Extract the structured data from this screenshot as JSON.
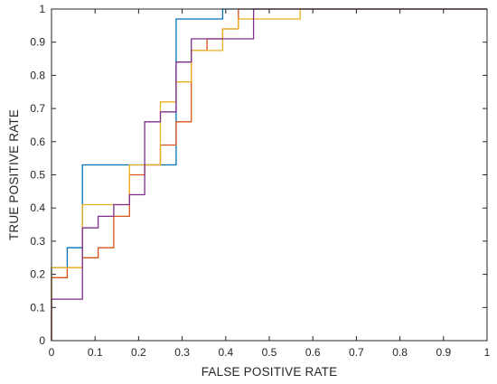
{
  "chart_data": {
    "type": "line",
    "title": "",
    "xlabel": "FALSE POSITIVE RATE",
    "ylabel": "TRUE POSITIVE RATE",
    "xlim": [
      0,
      1
    ],
    "ylim": [
      0,
      1
    ],
    "x_ticks": [
      0,
      0.1,
      0.2,
      0.3,
      0.4,
      0.5,
      0.6,
      0.7,
      0.8,
      0.9,
      1
    ],
    "y_ticks": [
      0,
      0.1,
      0.2,
      0.3,
      0.4,
      0.5,
      0.6,
      0.7,
      0.8,
      0.9,
      1
    ],
    "x_tick_labels": [
      "0",
      "0.1",
      "0.2",
      "0.3",
      "0.4",
      "0.5",
      "0.6",
      "0.7",
      "0.8",
      "0.9",
      "1"
    ],
    "y_tick_labels": [
      "0",
      "0.1",
      "0.2",
      "0.3",
      "0.4",
      "0.5",
      "0.6",
      "0.7",
      "0.8",
      "0.9",
      "1"
    ],
    "grid": false,
    "legend": "none",
    "series": [
      {
        "color": "#0072BD",
        "x": [
          0,
          0,
          0.036,
          0.036,
          0.071,
          0.071,
          0.071,
          0.179,
          0.179,
          0.286,
          0.286,
          0.393,
          0.393,
          1
        ],
        "y": [
          0,
          0.22,
          0.22,
          0.28,
          0.28,
          0.41,
          0.53,
          0.53,
          0.53,
          0.53,
          0.97,
          0.97,
          1,
          1
        ]
      },
      {
        "color": "#D95319",
        "x": [
          0,
          0,
          0.036,
          0.036,
          0.071,
          0.071,
          0.107,
          0.107,
          0.143,
          0.143,
          0.179,
          0.179,
          0.214,
          0.214,
          0.25,
          0.25,
          0.286,
          0.286,
          0.321,
          0.321,
          0.357,
          0.357,
          0.393,
          0.393,
          0.429,
          0.429,
          1
        ],
        "y": [
          0,
          0.19,
          0.19,
          0.22,
          0.22,
          0.25,
          0.25,
          0.28,
          0.28,
          0.375,
          0.375,
          0.5,
          0.5,
          0.53,
          0.53,
          0.59,
          0.59,
          0.66,
          0.66,
          0.875,
          0.875,
          0.91,
          0.91,
          0.94,
          0.94,
          1,
          1
        ]
      },
      {
        "color": "#EDB120",
        "x": [
          0,
          0,
          0.071,
          0.071,
          0.179,
          0.179,
          0.25,
          0.25,
          0.286,
          0.286,
          0.321,
          0.321,
          0.393,
          0.393,
          0.429,
          0.429,
          0.571,
          0.571,
          1
        ],
        "y": [
          0,
          0.22,
          0.22,
          0.41,
          0.41,
          0.53,
          0.53,
          0.72,
          0.72,
          0.78,
          0.78,
          0.875,
          0.875,
          0.94,
          0.94,
          0.97,
          0.97,
          1,
          1
        ]
      },
      {
        "color": "#7E2F8E",
        "x": [
          0,
          0,
          0.071,
          0.071,
          0.107,
          0.107,
          0.143,
          0.143,
          0.179,
          0.179,
          0.214,
          0.214,
          0.25,
          0.25,
          0.286,
          0.286,
          0.321,
          0.321,
          0.464,
          0.464,
          1
        ],
        "y": [
          0,
          0.125,
          0.125,
          0.34,
          0.34,
          0.375,
          0.375,
          0.41,
          0.41,
          0.44,
          0.44,
          0.66,
          0.66,
          0.69,
          0.69,
          0.84,
          0.84,
          0.91,
          0.91,
          1,
          1
        ]
      }
    ]
  }
}
